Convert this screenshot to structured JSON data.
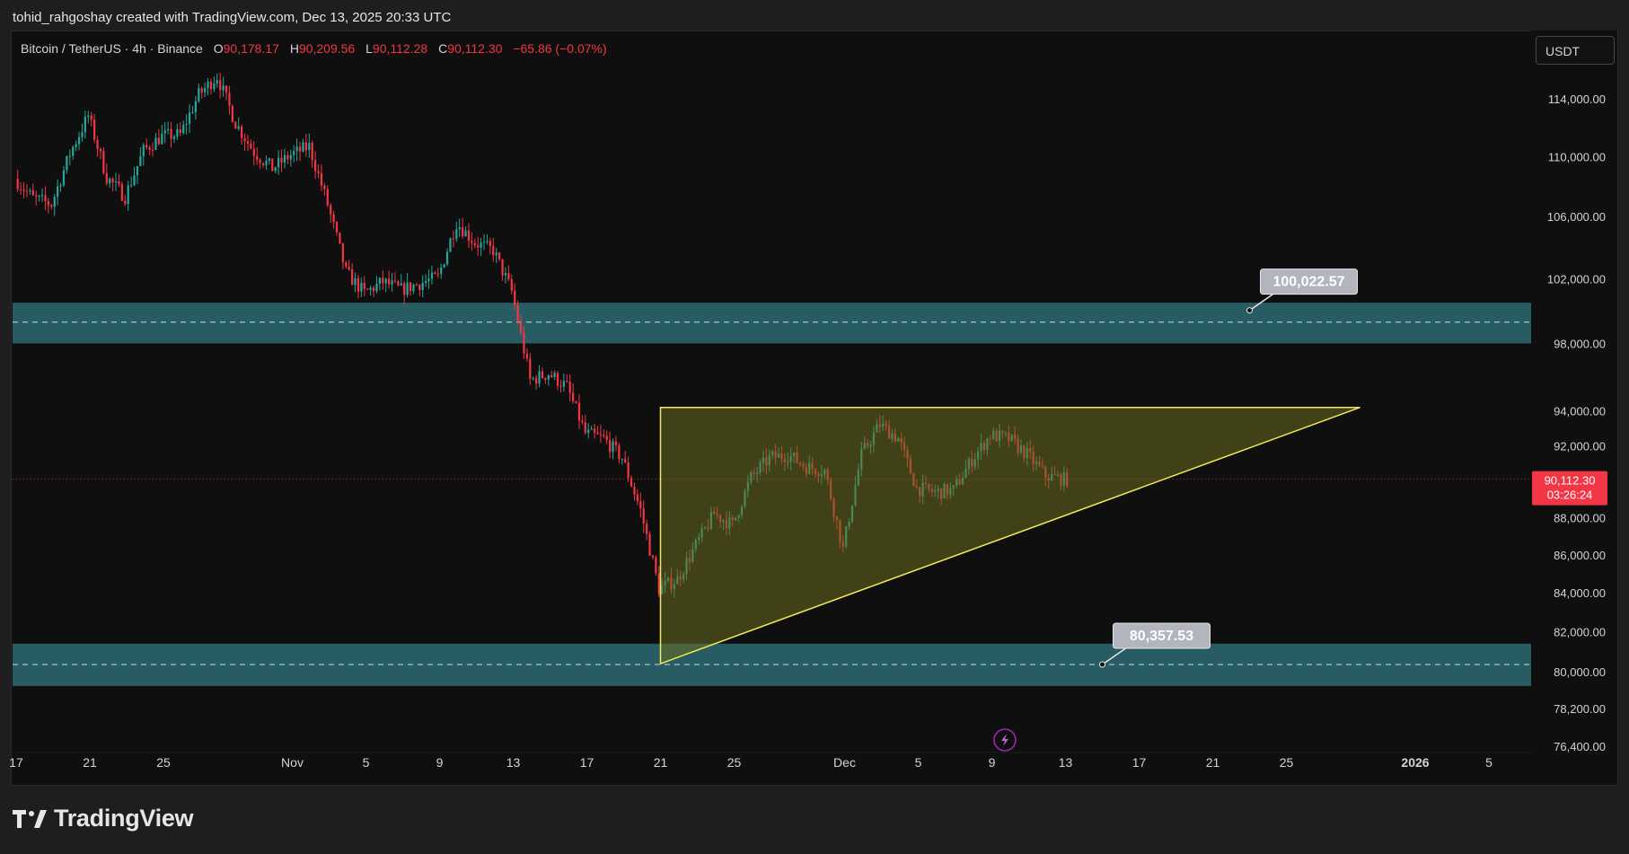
{
  "credit": "tohid_rahgoshay created with TradingView.com, Dec 13, 2025 20:33 UTC",
  "legend": {
    "symbol": "Bitcoin / TetherUS · 4h · Binance",
    "o_label": "O",
    "o_value": "90,178.17",
    "h_label": "H",
    "h_value": "90,209.56",
    "l_label": "L",
    "l_value": "90,112.28",
    "c_label": "C",
    "c_value": "90,112.30",
    "change": "−65.86 (−0.07%)"
  },
  "currency": "USDT",
  "brand": {
    "name": "TradingView",
    "logo_icon": "tradingview-logo-icon"
  },
  "colors": {
    "up": "#26a69a",
    "down": "#f23645",
    "zone": "#2b6a72",
    "triangle_fill": "#6b6b1f",
    "triangle_stroke": "#f2ea5a",
    "price_badge": "#f23645",
    "callout_bg": "#b2b5be"
  },
  "chart_data": {
    "type": "candlestick",
    "y_scale": "log",
    "ylim": [
      75500,
      118500
    ],
    "y_ticks": [
      {
        "value": 114000,
        "label": "114,000.00"
      },
      {
        "value": 110000,
        "label": "110,000.00"
      },
      {
        "value": 106000,
        "label": "106,000.00"
      },
      {
        "value": 102000,
        "label": "102,000.00"
      },
      {
        "value": 98000,
        "label": "98,000.00"
      },
      {
        "value": 94000,
        "label": "94,000.00"
      },
      {
        "value": 92000,
        "label": "92,000.00"
      },
      {
        "value": 88000,
        "label": "88,000.00"
      },
      {
        "value": 86000,
        "label": "86,000.00"
      },
      {
        "value": 84000,
        "label": "84,000.00"
      },
      {
        "value": 82000,
        "label": "82,000.00"
      },
      {
        "value": 80000,
        "label": "80,000.00"
      },
      {
        "value": 78200,
        "label": "78,200.00"
      },
      {
        "value": 76400,
        "label": "76,400.00"
      }
    ],
    "x_ticks": [
      {
        "date": "2025-10-17",
        "label": "17",
        "bold": false
      },
      {
        "date": "2025-10-21",
        "label": "21",
        "bold": false
      },
      {
        "date": "2025-10-25",
        "label": "25",
        "bold": false
      },
      {
        "date": "2025-11-01",
        "label": "Nov",
        "bold": false
      },
      {
        "date": "2025-11-05",
        "label": "5",
        "bold": false
      },
      {
        "date": "2025-11-09",
        "label": "9",
        "bold": false
      },
      {
        "date": "2025-11-13",
        "label": "13",
        "bold": false
      },
      {
        "date": "2025-11-17",
        "label": "17",
        "bold": false
      },
      {
        "date": "2025-11-21",
        "label": "21",
        "bold": false
      },
      {
        "date": "2025-11-25",
        "label": "25",
        "bold": false
      },
      {
        "date": "2025-12-01",
        "label": "Dec",
        "bold": false
      },
      {
        "date": "2025-12-05",
        "label": "5",
        "bold": false
      },
      {
        "date": "2025-12-09",
        "label": "9",
        "bold": false
      },
      {
        "date": "2025-12-13",
        "label": "13",
        "bold": false
      },
      {
        "date": "2025-12-17",
        "label": "17",
        "bold": false
      },
      {
        "date": "2025-12-21",
        "label": "21",
        "bold": false
      },
      {
        "date": "2025-12-25",
        "label": "25",
        "bold": false
      },
      {
        "date": "2026-01-01",
        "label": "2026",
        "bold": true
      },
      {
        "date": "2026-01-05",
        "label": "5",
        "bold": false
      }
    ],
    "price_path": [
      [
        "2025-10-17",
        108500
      ],
      [
        "2025-10-18",
        107200
      ],
      [
        "2025-10-19",
        106800
      ],
      [
        "2025-10-20",
        110200
      ],
      [
        "2025-10-21",
        112800
      ],
      [
        "2025-10-22",
        108600
      ],
      [
        "2025-10-23",
        107300
      ],
      [
        "2025-10-24",
        110400
      ],
      [
        "2025-10-25",
        111400
      ],
      [
        "2025-10-26",
        111500
      ],
      [
        "2025-10-27",
        114300
      ],
      [
        "2025-10-28",
        115600
      ],
      [
        "2025-10-29",
        112300
      ],
      [
        "2025-10-30",
        110300
      ],
      [
        "2025-10-31",
        109200
      ],
      [
        "2025-11-01",
        110100
      ],
      [
        "2025-11-02",
        110700
      ],
      [
        "2025-11-03",
        106800
      ],
      [
        "2025-11-04",
        102400
      ],
      [
        "2025-11-05",
        101100
      ],
      [
        "2025-11-06",
        101800
      ],
      [
        "2025-11-07",
        101300
      ],
      [
        "2025-11-08",
        101700
      ],
      [
        "2025-11-09",
        102100
      ],
      [
        "2025-11-10",
        105600
      ],
      [
        "2025-11-11",
        104300
      ],
      [
        "2025-11-12",
        103800
      ],
      [
        "2025-11-13",
        101200
      ],
      [
        "2025-11-14",
        95800
      ],
      [
        "2025-11-15",
        96200
      ],
      [
        "2025-11-16",
        95400
      ],
      [
        "2025-11-17",
        92700
      ],
      [
        "2025-11-18",
        92400
      ],
      [
        "2025-11-19",
        91300
      ],
      [
        "2025-11-20",
        88400
      ],
      [
        "2025-11-21",
        84200
      ],
      [
        "2025-11-22",
        84700
      ],
      [
        "2025-11-23",
        86500
      ],
      [
        "2025-11-24",
        88200
      ],
      [
        "2025-11-25",
        87600
      ],
      [
        "2025-11-26",
        90200
      ],
      [
        "2025-11-27",
        91300
      ],
      [
        "2025-11-28",
        91500
      ],
      [
        "2025-11-29",
        90800
      ],
      [
        "2025-11-30",
        90600
      ],
      [
        "2025-12-01",
        86300
      ],
      [
        "2025-12-02",
        91500
      ],
      [
        "2025-12-03",
        93200
      ],
      [
        "2025-12-04",
        92400
      ],
      [
        "2025-12-05",
        89600
      ],
      [
        "2025-12-06",
        89400
      ],
      [
        "2025-12-07",
        89500
      ],
      [
        "2025-12-08",
        91200
      ],
      [
        "2025-12-09",
        92600
      ],
      [
        "2025-12-10",
        92400
      ],
      [
        "2025-12-11",
        91500
      ],
      [
        "2025-12-12",
        90300
      ],
      [
        "2025-12-13",
        90112
      ]
    ],
    "zones": [
      {
        "name": "resistance-zone",
        "low": 98000,
        "high": 100500,
        "mid": 99300
      },
      {
        "name": "support-zone",
        "low": 79300,
        "high": 81400,
        "mid": 80357.53
      }
    ],
    "callouts": [
      {
        "label": "100,022.57",
        "anchor_date": "2025-12-23",
        "anchor_price": 100022.57
      },
      {
        "label": "80,357.53",
        "anchor_date": "2025-12-15",
        "anchor_price": 80357.53
      }
    ],
    "triangle": [
      {
        "date": "2025-11-21",
        "price": 94200
      },
      {
        "date": "2025-12-29",
        "price": 94200
      },
      {
        "date": "2025-11-21",
        "price": 80400
      }
    ],
    "last_price": {
      "value": 90112.3,
      "label": "90,112.30",
      "countdown": "03:26:24"
    },
    "event_marker": {
      "date": "2025-12-10",
      "icon": "lightning-icon"
    }
  }
}
